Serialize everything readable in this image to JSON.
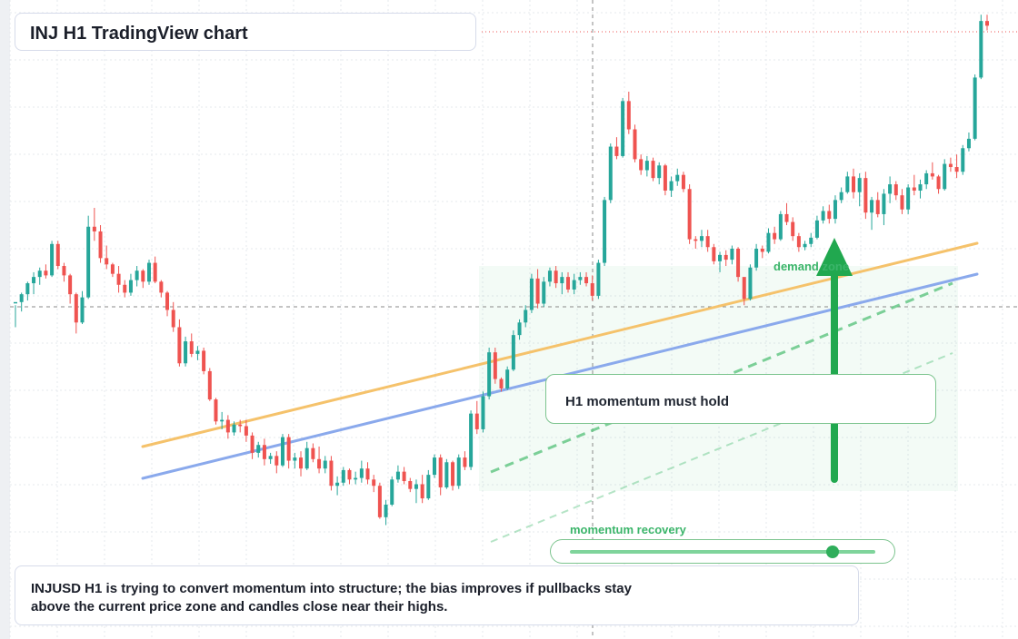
{
  "title": "INJ H1 TradingView chart",
  "chart_data": {
    "type": "candlestick",
    "symbol": "INJUSD",
    "timeframe": "H1",
    "candles": [
      [
        0.3,
        0.1,
        -1.3,
        0.3
      ],
      [
        0.3,
        0.9,
        -0.3,
        0.8
      ],
      [
        0.8,
        1.6,
        0.4,
        1.5
      ],
      [
        1.5,
        2.2,
        0.8,
        1.9
      ],
      [
        1.9,
        2.5,
        1.4,
        2.3
      ],
      [
        2.3,
        2.7,
        1.8,
        2.0
      ],
      [
        2.0,
        4.2,
        1.9,
        4.0
      ],
      [
        4.0,
        4.2,
        2.4,
        2.6
      ],
      [
        2.6,
        2.8,
        1.6,
        2.0
      ],
      [
        2.0,
        2.1,
        0.2,
        0.8
      ],
      [
        0.8,
        0.9,
        -1.7,
        -1.0
      ],
      [
        -1.0,
        1.0,
        -1.1,
        0.6
      ],
      [
        0.6,
        5.8,
        0.5,
        5.1
      ],
      [
        5.1,
        6.3,
        4.2,
        4.8
      ],
      [
        4.8,
        5.2,
        2.8,
        3.1
      ],
      [
        3.1,
        3.9,
        2.4,
        2.7
      ],
      [
        2.7,
        2.8,
        1.9,
        2.1
      ],
      [
        2.1,
        2.6,
        0.9,
        1.4
      ],
      [
        1.4,
        1.7,
        0.6,
        0.9
      ],
      [
        0.9,
        2.1,
        0.7,
        1.7
      ],
      [
        1.7,
        2.6,
        1.3,
        2.3
      ],
      [
        2.3,
        2.4,
        1.2,
        1.6
      ],
      [
        1.6,
        3.0,
        1.4,
        2.8
      ],
      [
        2.8,
        3.2,
        1.5,
        1.6
      ],
      [
        1.6,
        1.7,
        0.6,
        0.9
      ],
      [
        0.9,
        1.0,
        -0.6,
        -0.2
      ],
      [
        -0.2,
        0.3,
        -1.6,
        -1.3
      ],
      [
        -1.3,
        -0.8,
        -3.8,
        -3.6
      ],
      [
        -3.6,
        -1.9,
        -3.8,
        -2.2
      ],
      [
        -2.2,
        -1.7,
        -3.2,
        -3.0
      ],
      [
        -3.0,
        -2.5,
        -3.4,
        -2.8
      ],
      [
        -2.8,
        -2.6,
        -4.3,
        -4.1
      ],
      [
        -4.1,
        -3.9,
        -6.0,
        -5.9
      ],
      [
        -5.9,
        -5.8,
        -7.5,
        -7.3
      ],
      [
        -7.3,
        -6.7,
        -7.8,
        -7.2
      ],
      [
        -7.2,
        -6.9,
        -8.4,
        -8.0
      ],
      [
        -8.0,
        -7.3,
        -8.2,
        -7.5
      ],
      [
        -7.5,
        -7.2,
        -8.0,
        -7.6
      ],
      [
        -7.6,
        -7.2,
        -8.6,
        -8.2
      ],
      [
        -8.2,
        -8.0,
        -9.7,
        -9.3
      ],
      [
        -9.3,
        -8.6,
        -9.6,
        -8.8
      ],
      [
        -8.8,
        -8.4,
        -10.1,
        -9.7
      ],
      [
        -9.7,
        -9.3,
        -10.0,
        -9.5
      ],
      [
        -9.5,
        -9.2,
        -10.6,
        -10.1
      ],
      [
        -10.1,
        -8.1,
        -10.2,
        -8.3
      ],
      [
        -8.3,
        -8.1,
        -10.3,
        -9.8
      ],
      [
        -9.8,
        -9.3,
        -10.3,
        -9.6
      ],
      [
        -9.6,
        -9.2,
        -10.8,
        -10.3
      ],
      [
        -10.3,
        -8.6,
        -10.4,
        -9.0
      ],
      [
        -9.0,
        -8.7,
        -9.9,
        -9.7
      ],
      [
        -9.7,
        -8.9,
        -10.6,
        -10.3
      ],
      [
        -10.3,
        -9.5,
        -10.6,
        -9.8
      ],
      [
        -9.8,
        -9.5,
        -11.7,
        -11.4
      ],
      [
        -11.4,
        -10.8,
        -12.0,
        -11.2
      ],
      [
        -11.2,
        -10.2,
        -11.4,
        -10.4
      ],
      [
        -10.4,
        -10.3,
        -11.3,
        -11.0
      ],
      [
        -11.0,
        -10.5,
        -11.3,
        -10.9
      ],
      [
        -10.9,
        -9.8,
        -11.2,
        -10.3
      ],
      [
        -10.3,
        -9.9,
        -11.3,
        -11.0
      ],
      [
        -11.0,
        -10.7,
        -11.8,
        -11.4
      ],
      [
        -11.4,
        -11.2,
        -13.5,
        -13.4
      ],
      [
        -13.4,
        -12.3,
        -13.9,
        -12.6
      ],
      [
        -12.6,
        -10.8,
        -12.7,
        -11.0
      ],
      [
        -11.0,
        -10.1,
        -11.2,
        -10.5
      ],
      [
        -10.5,
        -10.2,
        -11.3,
        -11.1
      ],
      [
        -11.1,
        -10.9,
        -11.8,
        -11.6
      ],
      [
        -11.6,
        -11.0,
        -12.5,
        -11.3
      ],
      [
        -11.3,
        -10.7,
        -12.5,
        -12.2
      ],
      [
        -12.2,
        -10.4,
        -12.3,
        -10.7
      ],
      [
        -10.7,
        -9.4,
        -10.9,
        -9.6
      ],
      [
        -9.6,
        -9.4,
        -12.0,
        -11.5
      ],
      [
        -11.5,
        -9.7,
        -11.6,
        -9.9
      ],
      [
        -9.9,
        -9.8,
        -11.7,
        -11.4
      ],
      [
        -11.4,
        -9.4,
        -11.6,
        -9.6
      ],
      [
        -9.6,
        -9.2,
        -10.4,
        -10.2
      ],
      [
        -10.2,
        -6.6,
        -10.4,
        -6.8
      ],
      [
        -6.8,
        -6.0,
        -8.1,
        -7.8
      ],
      [
        -7.8,
        -5.4,
        -8.0,
        -5.7
      ],
      [
        -5.7,
        -2.6,
        -5.9,
        -2.9
      ],
      [
        -2.9,
        -2.6,
        -4.9,
        -4.6
      ],
      [
        -4.6,
        -4.5,
        -5.4,
        -5.2
      ],
      [
        -5.2,
        -3.8,
        -5.3,
        -4.0
      ],
      [
        -4.0,
        -1.5,
        -4.1,
        -1.8
      ],
      [
        -1.8,
        -0.8,
        -2.1,
        -1.0
      ],
      [
        -1.0,
        0.1,
        -1.3,
        -0.2
      ],
      [
        -0.2,
        2.1,
        -0.4,
        1.8
      ],
      [
        1.8,
        2.4,
        -0.1,
        0.2
      ],
      [
        0.2,
        1.9,
        0.0,
        1.6
      ],
      [
        1.6,
        2.5,
        1.3,
        2.3
      ],
      [
        2.3,
        2.6,
        1.2,
        1.5
      ],
      [
        1.5,
        2.2,
        0.8,
        1.9
      ],
      [
        1.9,
        2.2,
        0.9,
        1.1
      ],
      [
        1.1,
        2.1,
        0.8,
        1.7
      ],
      [
        1.7,
        2.2,
        1.4,
        1.9
      ],
      [
        1.9,
        2.2,
        1.3,
        1.5
      ],
      [
        1.5,
        2.0,
        0.4,
        0.7
      ],
      [
        0.7,
        3.0,
        0.5,
        2.8
      ],
      [
        2.8,
        7.0,
        2.6,
        6.8
      ],
      [
        6.8,
        10.4,
        6.6,
        10.2
      ],
      [
        10.2,
        10.8,
        9.4,
        9.6
      ],
      [
        9.6,
        13.3,
        9.5,
        13.1
      ],
      [
        13.1,
        13.7,
        11.0,
        11.3
      ],
      [
        11.3,
        11.6,
        9.2,
        9.4
      ],
      [
        9.4,
        9.7,
        8.4,
        8.7
      ],
      [
        8.7,
        9.6,
        8.3,
        9.3
      ],
      [
        9.3,
        9.5,
        8.0,
        8.2
      ],
      [
        8.2,
        9.2,
        7.8,
        9.0
      ],
      [
        9.0,
        9.1,
        7.1,
        7.4
      ],
      [
        7.4,
        8.3,
        7.0,
        8.0
      ],
      [
        8.0,
        8.8,
        7.7,
        8.4
      ],
      [
        8.4,
        8.6,
        7.3,
        7.5
      ],
      [
        7.5,
        7.8,
        4.0,
        4.3
      ],
      [
        4.3,
        4.5,
        3.7,
        4.2
      ],
      [
        4.2,
        4.9,
        3.8,
        4.5
      ],
      [
        4.5,
        4.9,
        3.5,
        3.8
      ],
      [
        3.8,
        4.0,
        2.7,
        2.9
      ],
      [
        2.9,
        3.5,
        2.2,
        3.3
      ],
      [
        3.3,
        3.6,
        2.6,
        3.0
      ],
      [
        3.0,
        3.9,
        2.7,
        3.7
      ],
      [
        3.7,
        3.8,
        1.6,
        1.9
      ],
      [
        1.9,
        1.8,
        0.1,
        0.5
      ],
      [
        0.5,
        2.7,
        0.4,
        2.5
      ],
      [
        2.5,
        4.0,
        2.3,
        3.7
      ],
      [
        3.7,
        3.9,
        3.1,
        3.5
      ],
      [
        3.5,
        5.0,
        3.4,
        4.7
      ],
      [
        4.7,
        5.1,
        4.0,
        4.3
      ],
      [
        4.3,
        6.1,
        4.2,
        5.9
      ],
      [
        5.9,
        6.6,
        5.2,
        5.4
      ],
      [
        5.4,
        5.7,
        4.2,
        4.5
      ],
      [
        4.5,
        4.7,
        3.5,
        3.8
      ],
      [
        3.8,
        4.2,
        3.6,
        4.0
      ],
      [
        4.0,
        4.7,
        3.8,
        4.4
      ],
      [
        4.4,
        5.8,
        4.3,
        5.5
      ],
      [
        5.5,
        6.4,
        5.3,
        6.1
      ],
      [
        6.1,
        6.5,
        5.3,
        5.6
      ],
      [
        5.6,
        7.1,
        5.3,
        6.8
      ],
      [
        6.8,
        7.6,
        6.6,
        7.3
      ],
      [
        7.3,
        8.6,
        7.2,
        8.3
      ],
      [
        8.3,
        8.8,
        6.9,
        7.3
      ],
      [
        7.3,
        8.5,
        6.4,
        8.2
      ],
      [
        8.2,
        8.6,
        5.6,
        6.0
      ],
      [
        6.0,
        7.0,
        4.9,
        6.8
      ],
      [
        6.8,
        7.3,
        5.7,
        5.9
      ],
      [
        5.9,
        7.5,
        5.2,
        7.2
      ],
      [
        7.2,
        8.3,
        6.6,
        7.8
      ],
      [
        7.8,
        8.0,
        6.8,
        7.1
      ],
      [
        7.1,
        7.5,
        5.9,
        6.2
      ],
      [
        6.2,
        7.8,
        5.9,
        7.6
      ],
      [
        7.6,
        8.4,
        7.1,
        7.4
      ],
      [
        7.4,
        8.1,
        6.9,
        7.8
      ],
      [
        7.8,
        8.7,
        7.5,
        8.5
      ],
      [
        8.5,
        9.2,
        8.1,
        8.3
      ],
      [
        8.3,
        8.4,
        7.2,
        7.5
      ],
      [
        7.5,
        9.4,
        7.4,
        9.1
      ],
      [
        9.1,
        9.5,
        8.6,
        8.9
      ],
      [
        8.9,
        9.7,
        8.2,
        8.6
      ],
      [
        8.6,
        10.3,
        8.4,
        10.1
      ],
      [
        10.1,
        11.1,
        9.9,
        10.7
      ],
      [
        10.7,
        14.8,
        10.6,
        14.6
      ],
      [
        14.6,
        18.6,
        14.5,
        18.2
      ],
      [
        18.2,
        18.6,
        17.6,
        17.9
      ]
    ],
    "overlays": [
      "orange trendline",
      "blue trendline",
      "dashed green projection",
      "faint dashed green projection",
      "vertical green arrow",
      "demand zone"
    ],
    "grid": true
  },
  "labels": {
    "demand_zone": "demand zone",
    "note": "H1 momentum must hold",
    "momentum_label": "momentum recovery",
    "caption": "INJUSD H1 is trying to convert momentum into structure; the bias improves if pullbacks stay above the current price zone and candles close near their highs."
  },
  "momentum": {
    "value": 0.86
  },
  "colors": {
    "up": "#26a69a",
    "down": "#ef5350",
    "orange_line": "#f5c26b",
    "blue_line": "#8aa9ec",
    "accent": "#2fae5b"
  }
}
